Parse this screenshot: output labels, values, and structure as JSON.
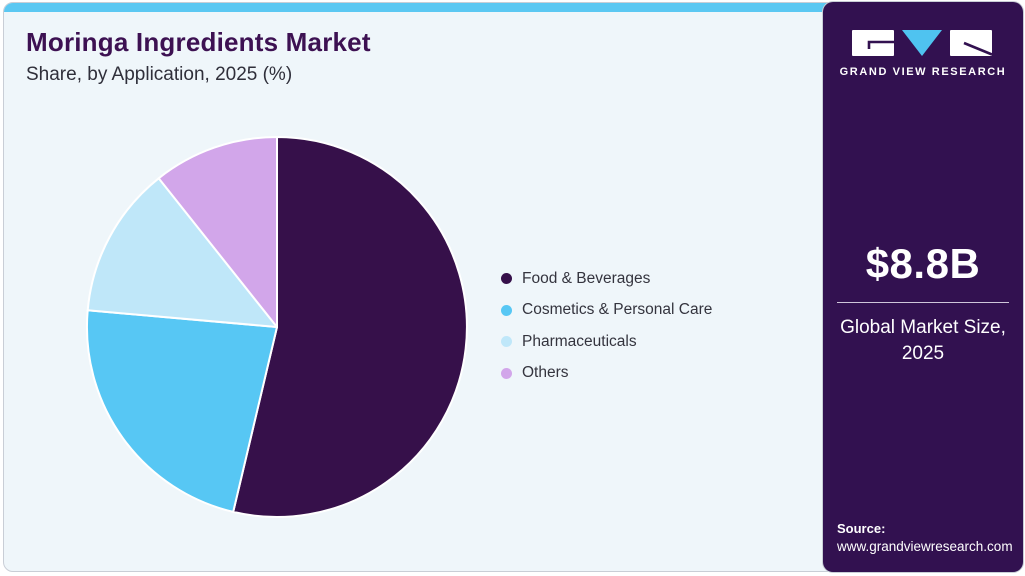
{
  "header": {
    "title": "Moringa Ingredients Market",
    "subtitle": "Share, by Application, 2025 (%)"
  },
  "chart_data": {
    "type": "pie",
    "title": "Moringa Ingredients Market Share, by Application, 2025 (%)",
    "categories": [
      "Food & Beverages",
      "Cosmetics & Personal Care",
      "Pharmaceuticals",
      "Others"
    ],
    "values": [
      53.7,
      22.7,
      12.9,
      10.7
    ],
    "unit": "%",
    "colors": [
      "#36104a",
      "#57c7f4",
      "#bfe7f9",
      "#d2a6ea"
    ],
    "start_angle": "top",
    "direction": "clockwise",
    "legend_position": "right",
    "slice_separator_color": "#ffffff"
  },
  "sidebar": {
    "logo_text": "GRAND VIEW RESEARCH",
    "market_size": "$8.8B",
    "market_size_label_line1": "Global Market Size,",
    "market_size_label_line2": "2025",
    "source_label": "Source:",
    "source_url": "www.grandviewresearch.com",
    "bg_color": "#321150",
    "logo_accent_color": "#4fc3f0"
  },
  "theme": {
    "topbar_color": "#5bc8f2",
    "card_bg": "#eff6fa",
    "title_color": "#3d1152",
    "text_color": "#34343e"
  }
}
